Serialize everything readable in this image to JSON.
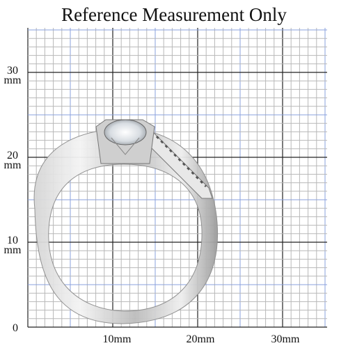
{
  "header": {
    "title": "Reference Measurement Only"
  },
  "y_labels": [
    {
      "number": "30",
      "unit": "mm"
    },
    {
      "number": "20",
      "unit": "mm"
    },
    {
      "number": "10",
      "unit": "mm"
    },
    {
      "number": "0"
    }
  ],
  "x_labels": [
    "10mm",
    "20mm",
    "30mm"
  ]
}
